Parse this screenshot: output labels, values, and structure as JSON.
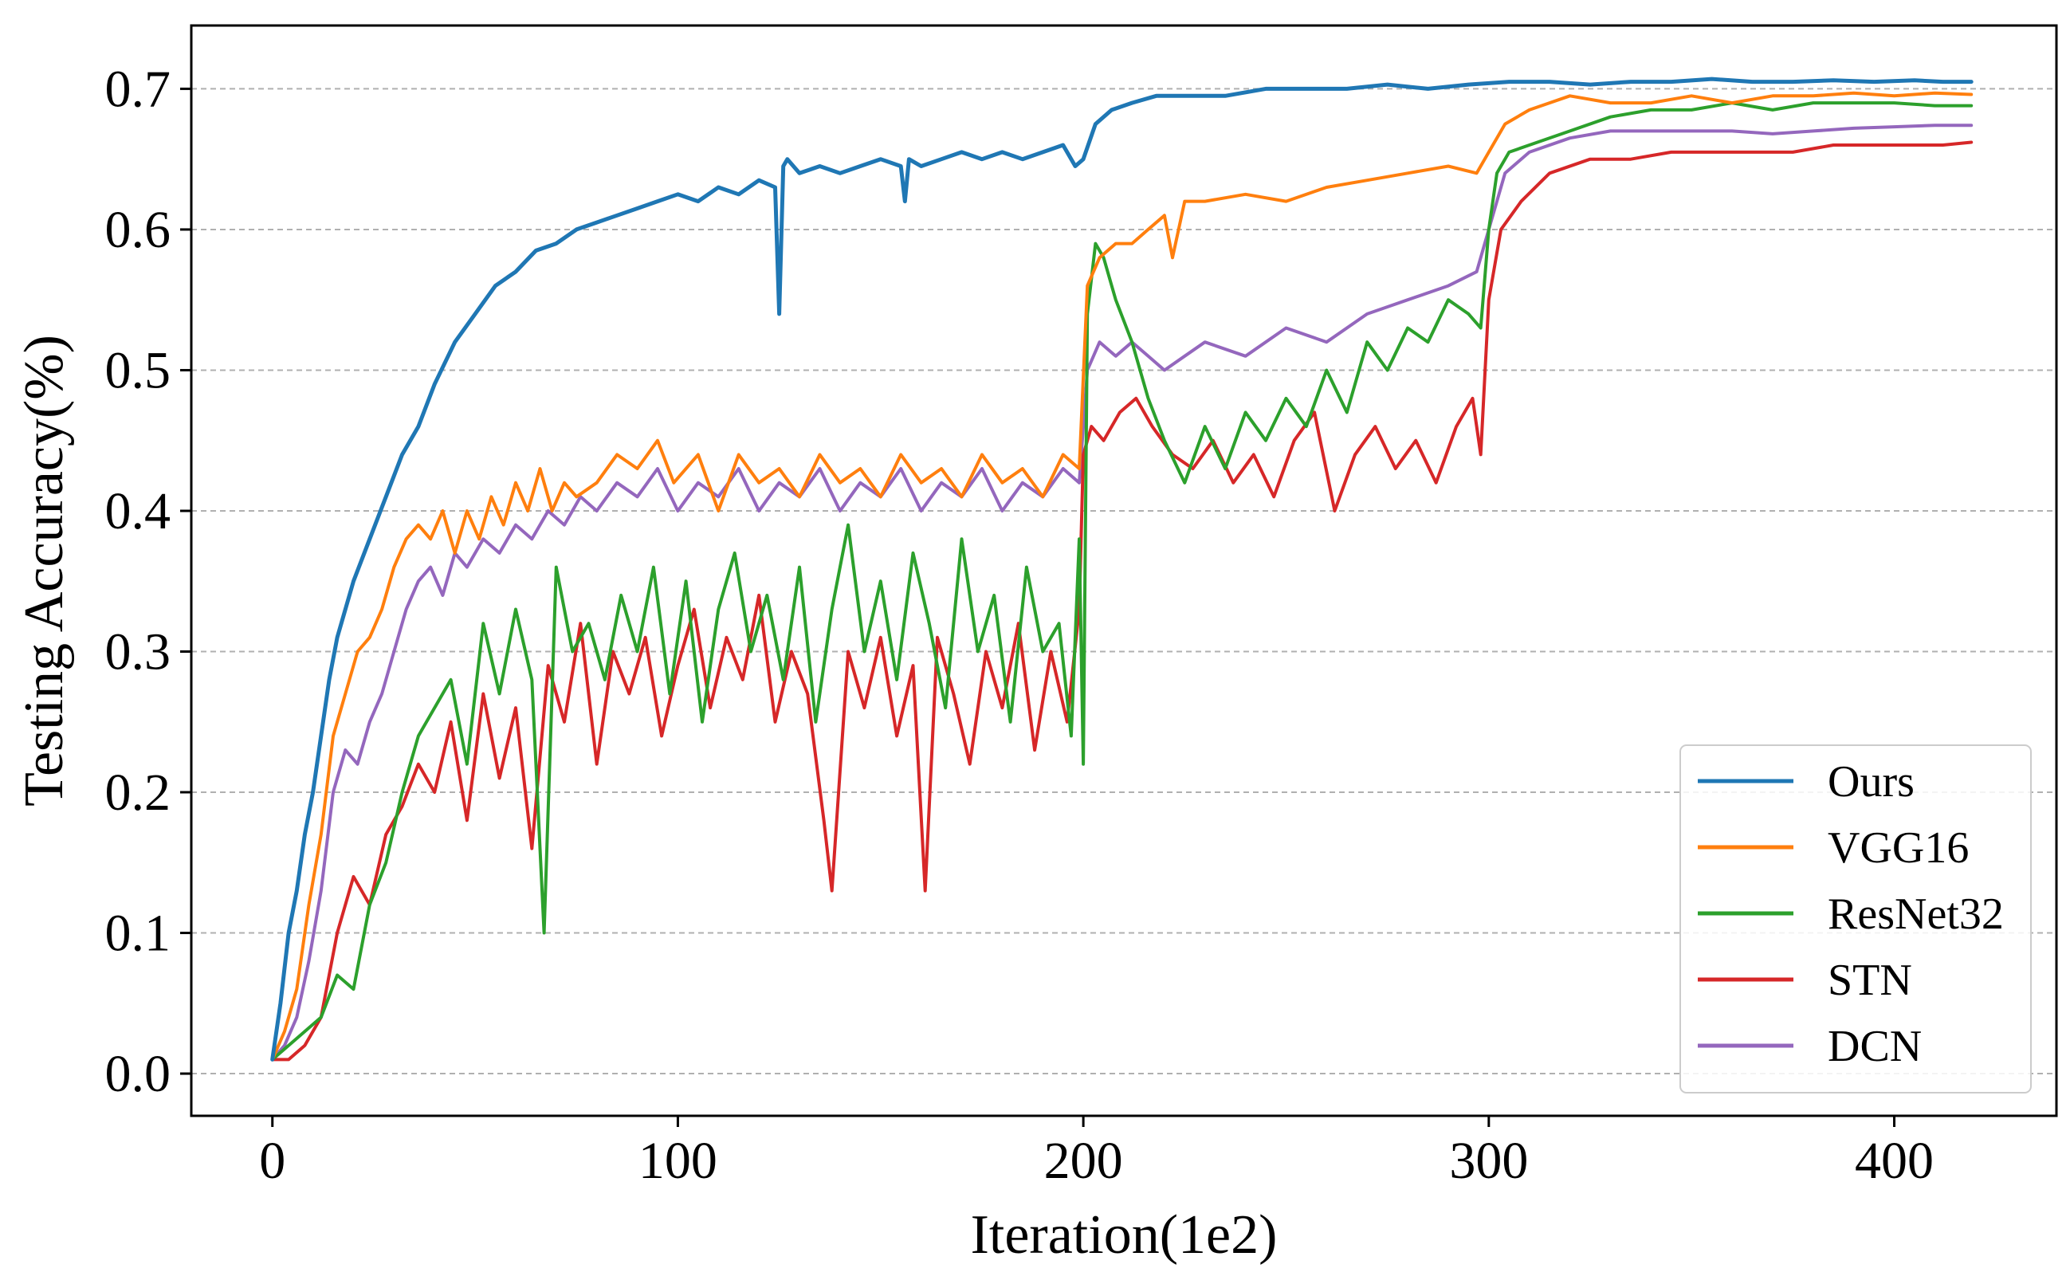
{
  "chart_data": {
    "type": "line",
    "title": "",
    "xlabel": "Iteration(1e2)",
    "ylabel": "Testing Accuracy(%)",
    "xlim": [
      -20,
      440
    ],
    "ylim": [
      -0.03,
      0.745
    ],
    "xticks": [
      0,
      100,
      200,
      300,
      400
    ],
    "yticks": [
      0.0,
      0.1,
      0.2,
      0.3,
      0.4,
      0.5,
      0.6,
      0.7
    ],
    "xtick_labels": [
      "0",
      "100",
      "200",
      "300",
      "400"
    ],
    "ytick_labels": [
      "0.0",
      "0.1",
      "0.2",
      "0.3",
      "0.4",
      "0.5",
      "0.6",
      "0.7"
    ],
    "grid": "horizontal dashed",
    "legend_position": "lower-right",
    "series": [
      {
        "name": "Ours",
        "color": "#1f77b4",
        "x": [
          0,
          2,
          4,
          6,
          8,
          10,
          12,
          14,
          16,
          18,
          20,
          24,
          28,
          32,
          36,
          40,
          45,
          50,
          55,
          60,
          65,
          70,
          75,
          80,
          85,
          90,
          95,
          100,
          105,
          110,
          115,
          120,
          124,
          125,
          126,
          127,
          130,
          135,
          140,
          145,
          150,
          155,
          156,
          157,
          160,
          165,
          170,
          175,
          180,
          185,
          190,
          195,
          198,
          200,
          203,
          207,
          212,
          218,
          225,
          235,
          245,
          255,
          265,
          275,
          285,
          295,
          305,
          315,
          325,
          335,
          345,
          355,
          365,
          375,
          385,
          395,
          405,
          412,
          419
        ],
        "y": [
          0.01,
          0.05,
          0.1,
          0.13,
          0.17,
          0.2,
          0.24,
          0.28,
          0.31,
          0.33,
          0.35,
          0.38,
          0.41,
          0.44,
          0.46,
          0.49,
          0.52,
          0.54,
          0.56,
          0.57,
          0.585,
          0.59,
          0.6,
          0.605,
          0.61,
          0.615,
          0.62,
          0.625,
          0.62,
          0.63,
          0.625,
          0.635,
          0.63,
          0.54,
          0.645,
          0.65,
          0.64,
          0.645,
          0.64,
          0.645,
          0.65,
          0.645,
          0.62,
          0.65,
          0.645,
          0.65,
          0.655,
          0.65,
          0.655,
          0.65,
          0.655,
          0.66,
          0.645,
          0.65,
          0.675,
          0.685,
          0.69,
          0.695,
          0.695,
          0.695,
          0.7,
          0.7,
          0.7,
          0.703,
          0.7,
          0.703,
          0.705,
          0.705,
          0.703,
          0.705,
          0.705,
          0.707,
          0.705,
          0.705,
          0.706,
          0.705,
          0.706,
          0.705,
          0.705
        ]
      },
      {
        "name": "VGG16",
        "color": "#ff7f0e",
        "x": [
          0,
          3,
          6,
          9,
          12,
          15,
          18,
          21,
          24,
          27,
          30,
          33,
          36,
          39,
          42,
          45,
          48,
          51,
          54,
          57,
          60,
          63,
          66,
          69,
          72,
          75,
          80,
          85,
          90,
          95,
          99,
          105,
          110,
          115,
          120,
          125,
          130,
          135,
          140,
          145,
          150,
          155,
          160,
          165,
          170,
          175,
          180,
          185,
          190,
          195,
          199,
          201,
          204,
          208,
          212,
          216,
          220,
          222,
          225,
          230,
          240,
          250,
          260,
          270,
          280,
          290,
          297,
          300,
          304,
          310,
          320,
          330,
          340,
          350,
          360,
          370,
          380,
          390,
          400,
          410,
          419
        ],
        "y": [
          0.01,
          0.03,
          0.06,
          0.12,
          0.17,
          0.24,
          0.27,
          0.3,
          0.31,
          0.33,
          0.36,
          0.38,
          0.39,
          0.38,
          0.4,
          0.37,
          0.4,
          0.38,
          0.41,
          0.39,
          0.42,
          0.4,
          0.43,
          0.4,
          0.42,
          0.41,
          0.42,
          0.44,
          0.43,
          0.45,
          0.42,
          0.44,
          0.4,
          0.44,
          0.42,
          0.43,
          0.41,
          0.44,
          0.42,
          0.43,
          0.41,
          0.44,
          0.42,
          0.43,
          0.41,
          0.44,
          0.42,
          0.43,
          0.41,
          0.44,
          0.43,
          0.56,
          0.58,
          0.59,
          0.59,
          0.6,
          0.61,
          0.58,
          0.62,
          0.62,
          0.625,
          0.62,
          0.63,
          0.635,
          0.64,
          0.645,
          0.64,
          0.655,
          0.675,
          0.685,
          0.695,
          0.69,
          0.69,
          0.695,
          0.69,
          0.695,
          0.695,
          0.697,
          0.695,
          0.697,
          0.696
        ]
      },
      {
        "name": "ResNet32",
        "color": "#2ca02c",
        "x": [
          0,
          4,
          8,
          12,
          16,
          20,
          24,
          28,
          32,
          36,
          40,
          44,
          48,
          52,
          56,
          60,
          64,
          67,
          70,
          74,
          78,
          82,
          86,
          90,
          94,
          98,
          102,
          106,
          110,
          114,
          118,
          122,
          126,
          130,
          134,
          138,
          142,
          146,
          150,
          154,
          158,
          162,
          166,
          170,
          174,
          178,
          182,
          186,
          190,
          194,
          197,
          199,
          200,
          201,
          203,
          205,
          208,
          212,
          216,
          220,
          225,
          230,
          235,
          240,
          245,
          250,
          255,
          260,
          265,
          270,
          275,
          280,
          285,
          290,
          295,
          298,
          300,
          302,
          305,
          310,
          320,
          330,
          340,
          350,
          360,
          370,
          380,
          390,
          400,
          410,
          419
        ],
        "y": [
          0.01,
          0.02,
          0.03,
          0.04,
          0.07,
          0.06,
          0.12,
          0.15,
          0.2,
          0.24,
          0.26,
          0.28,
          0.22,
          0.32,
          0.27,
          0.33,
          0.28,
          0.1,
          0.36,
          0.3,
          0.32,
          0.28,
          0.34,
          0.3,
          0.36,
          0.27,
          0.35,
          0.25,
          0.33,
          0.37,
          0.3,
          0.34,
          0.28,
          0.36,
          0.25,
          0.33,
          0.39,
          0.3,
          0.35,
          0.28,
          0.37,
          0.32,
          0.26,
          0.38,
          0.3,
          0.34,
          0.25,
          0.36,
          0.3,
          0.32,
          0.24,
          0.38,
          0.22,
          0.54,
          0.59,
          0.58,
          0.55,
          0.52,
          0.48,
          0.45,
          0.42,
          0.46,
          0.43,
          0.47,
          0.45,
          0.48,
          0.46,
          0.5,
          0.47,
          0.52,
          0.5,
          0.53,
          0.52,
          0.55,
          0.54,
          0.53,
          0.6,
          0.64,
          0.655,
          0.66,
          0.67,
          0.68,
          0.685,
          0.685,
          0.69,
          0.685,
          0.69,
          0.69,
          0.69,
          0.688,
          0.688
        ]
      },
      {
        "name": "STN",
        "color": "#d62728",
        "x": [
          0,
          4,
          8,
          12,
          16,
          20,
          24,
          28,
          32,
          36,
          40,
          44,
          48,
          52,
          56,
          60,
          64,
          68,
          72,
          76,
          80,
          84,
          88,
          92,
          96,
          100,
          104,
          108,
          112,
          116,
          120,
          124,
          128,
          132,
          136,
          138,
          142,
          146,
          150,
          154,
          158,
          161,
          164,
          168,
          172,
          176,
          180,
          184,
          188,
          192,
          196,
          199,
          200,
          202,
          205,
          209,
          213,
          217,
          222,
          227,
          232,
          237,
          242,
          247,
          252,
          257,
          262,
          267,
          272,
          277,
          282,
          287,
          292,
          296,
          298,
          300,
          303,
          308,
          315,
          325,
          335,
          345,
          355,
          365,
          375,
          385,
          395,
          405,
          412,
          419
        ],
        "y": [
          0.01,
          0.01,
          0.02,
          0.04,
          0.1,
          0.14,
          0.12,
          0.17,
          0.19,
          0.22,
          0.2,
          0.25,
          0.18,
          0.27,
          0.21,
          0.26,
          0.16,
          0.29,
          0.25,
          0.32,
          0.22,
          0.3,
          0.27,
          0.31,
          0.24,
          0.29,
          0.33,
          0.26,
          0.31,
          0.28,
          0.34,
          0.25,
          0.3,
          0.27,
          0.18,
          0.13,
          0.3,
          0.26,
          0.31,
          0.24,
          0.29,
          0.13,
          0.31,
          0.27,
          0.22,
          0.3,
          0.26,
          0.32,
          0.23,
          0.3,
          0.25,
          0.33,
          0.44,
          0.46,
          0.45,
          0.47,
          0.48,
          0.46,
          0.44,
          0.43,
          0.45,
          0.42,
          0.44,
          0.41,
          0.45,
          0.47,
          0.4,
          0.44,
          0.46,
          0.43,
          0.45,
          0.42,
          0.46,
          0.48,
          0.44,
          0.55,
          0.6,
          0.62,
          0.64,
          0.65,
          0.65,
          0.655,
          0.655,
          0.655,
          0.655,
          0.66,
          0.66,
          0.66,
          0.66,
          0.662
        ]
      },
      {
        "name": "DCN",
        "color": "#9467bd",
        "x": [
          0,
          3,
          6,
          9,
          12,
          15,
          18,
          21,
          24,
          27,
          30,
          33,
          36,
          39,
          42,
          45,
          48,
          52,
          56,
          60,
          64,
          68,
          72,
          76,
          80,
          85,
          90,
          95,
          100,
          105,
          110,
          115,
          120,
          125,
          130,
          135,
          140,
          145,
          150,
          155,
          160,
          165,
          170,
          175,
          180,
          185,
          190,
          195,
          199,
          201,
          204,
          208,
          212,
          216,
          220,
          225,
          230,
          240,
          250,
          260,
          270,
          280,
          290,
          297,
          300,
          304,
          310,
          320,
          330,
          340,
          350,
          360,
          370,
          380,
          390,
          400,
          410,
          419
        ],
        "y": [
          0.01,
          0.02,
          0.04,
          0.08,
          0.13,
          0.2,
          0.23,
          0.22,
          0.25,
          0.27,
          0.3,
          0.33,
          0.35,
          0.36,
          0.34,
          0.37,
          0.36,
          0.38,
          0.37,
          0.39,
          0.38,
          0.4,
          0.39,
          0.41,
          0.4,
          0.42,
          0.41,
          0.43,
          0.4,
          0.42,
          0.41,
          0.43,
          0.4,
          0.42,
          0.41,
          0.43,
          0.4,
          0.42,
          0.41,
          0.43,
          0.4,
          0.42,
          0.41,
          0.43,
          0.4,
          0.42,
          0.41,
          0.43,
          0.42,
          0.5,
          0.52,
          0.51,
          0.52,
          0.51,
          0.5,
          0.51,
          0.52,
          0.51,
          0.53,
          0.52,
          0.54,
          0.55,
          0.56,
          0.57,
          0.6,
          0.64,
          0.655,
          0.665,
          0.67,
          0.67,
          0.67,
          0.67,
          0.668,
          0.67,
          0.672,
          0.673,
          0.674,
          0.674
        ]
      }
    ]
  }
}
